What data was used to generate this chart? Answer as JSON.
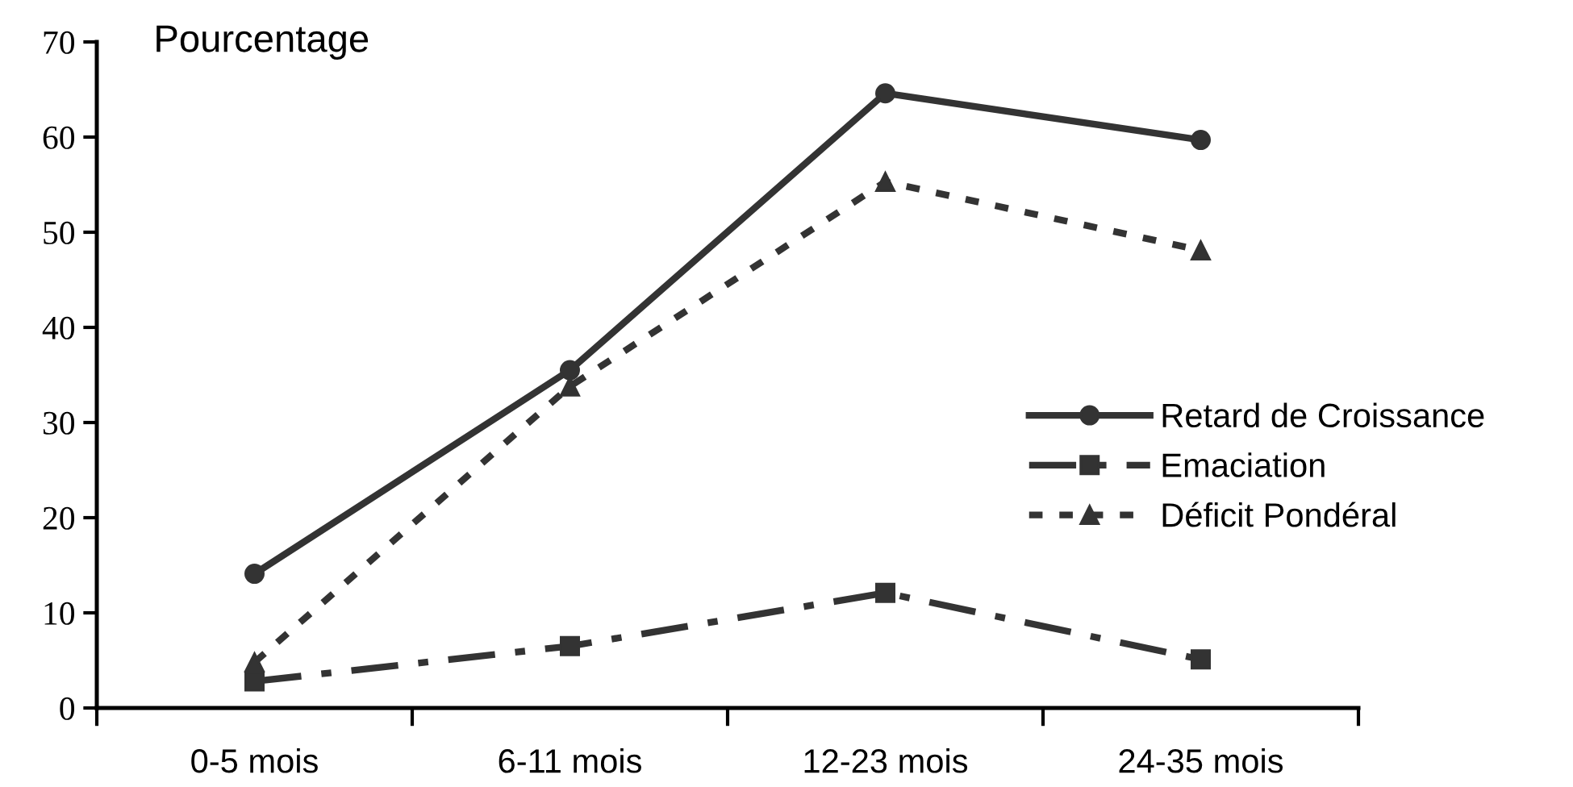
{
  "chart_data": {
    "type": "line",
    "ylabel": "Pourcentage",
    "categories": [
      "0-5 mois",
      "6-11 mois",
      "12-23 mois",
      "24-35 mois"
    ],
    "series": [
      {
        "name": "Retard de Croissance",
        "color": "#333333",
        "values": [
          14.1,
          35.5,
          64.6,
          59.7
        ],
        "marker": "circle",
        "line_style": "solid"
      },
      {
        "name": "Emaciation",
        "color": "#333333",
        "values": [
          2.8,
          6.5,
          12.1,
          5.1
        ],
        "marker": "square",
        "line_style": "dashed"
      },
      {
        "name": "Déficit Pondéral",
        "color": "#333333",
        "values": [
          4.8,
          33.8,
          55.3,
          48.1
        ],
        "marker": "triangle",
        "line_style": "dotted"
      }
    ],
    "ylim": [
      0,
      70
    ],
    "yticks": [
      0,
      10,
      20,
      30,
      40,
      50,
      60,
      70
    ],
    "grid": false,
    "legend": "right"
  }
}
